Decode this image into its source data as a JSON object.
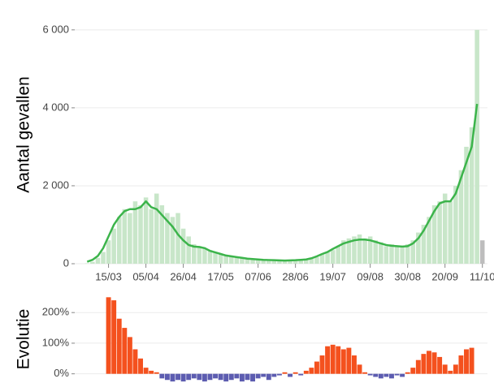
{
  "chart_data": [
    {
      "type": "bar-line",
      "y_label": "Aantal gevallen",
      "x": [
        "03/03",
        "06/03",
        "09/03",
        "12/03",
        "15/03",
        "18/03",
        "21/03",
        "24/03",
        "27/03",
        "30/03",
        "02/04",
        "05/04",
        "08/04",
        "11/04",
        "14/04",
        "17/04",
        "20/04",
        "23/04",
        "26/04",
        "29/04",
        "02/05",
        "05/05",
        "08/05",
        "11/05",
        "14/05",
        "17/05",
        "20/05",
        "23/05",
        "26/05",
        "29/05",
        "01/06",
        "04/06",
        "07/06",
        "10/06",
        "13/06",
        "16/06",
        "19/06",
        "22/06",
        "25/06",
        "28/06",
        "01/07",
        "04/07",
        "07/07",
        "10/07",
        "13/07",
        "16/07",
        "19/07",
        "22/07",
        "25/07",
        "28/07",
        "31/07",
        "03/08",
        "06/08",
        "09/08",
        "12/08",
        "15/08",
        "18/08",
        "21/08",
        "24/08",
        "27/08",
        "30/08",
        "02/09",
        "05/09",
        "08/09",
        "11/09",
        "14/09",
        "17/09",
        "20/09",
        "23/09",
        "26/09",
        "29/09",
        "02/10",
        "05/10",
        "08/10",
        "11/10"
      ],
      "xticks": [
        "15/03",
        "05/04",
        "26/04",
        "17/05",
        "07/06",
        "28/06",
        "19/07",
        "09/08",
        "30/08",
        "20/09",
        "11/10"
      ],
      "series": [
        {
          "kind": "bar",
          "color": "#c8e6c9",
          "values": [
            10,
            50,
            150,
            300,
            600,
            900,
            1200,
            1400,
            1300,
            1600,
            1500,
            1700,
            1400,
            1800,
            1500,
            1300,
            1200,
            1300,
            900,
            700,
            500,
            450,
            400,
            350,
            300,
            250,
            200,
            200,
            150,
            150,
            120,
            120,
            100,
            100,
            90,
            90,
            80,
            80,
            90,
            90,
            100,
            100,
            130,
            170,
            250,
            300,
            350,
            450,
            600,
            650,
            700,
            750,
            650,
            700,
            600,
            550,
            450,
            500,
            450,
            450,
            500,
            600,
            800,
            1000,
            1200,
            1500,
            1600,
            1800,
            1600,
            2000,
            2400,
            3000,
            3500,
            6000,
            600
          ]
        },
        {
          "kind": "line",
          "color": "#3cb44b",
          "values": [
            50,
            100,
            200,
            400,
            700,
            1000,
            1200,
            1350,
            1400,
            1400,
            1450,
            1600,
            1450,
            1400,
            1250,
            1100,
            950,
            750,
            600,
            480,
            440,
            430,
            400,
            330,
            290,
            250,
            210,
            190,
            170,
            150,
            130,
            120,
            110,
            100,
            95,
            90,
            85,
            80,
            85,
            90,
            100,
            110,
            140,
            190,
            250,
            300,
            380,
            450,
            520,
            560,
            600,
            620,
            620,
            600,
            560,
            520,
            480,
            460,
            450,
            440,
            450,
            520,
            650,
            850,
            1100,
            1350,
            1550,
            1600,
            1600,
            1800,
            2200,
            2600,
            3000,
            4100,
            null
          ]
        }
      ],
      "ylim": [
        0,
        6600
      ],
      "yticks": [
        {
          "value": 0,
          "label": "0"
        },
        {
          "value": 2000,
          "label": "2 000"
        },
        {
          "value": 4000,
          "label": "4 000"
        },
        {
          "value": 6000,
          "label": "6 000"
        }
      ],
      "grid": true
    },
    {
      "type": "diverging-bar",
      "y_label": "Evolutie",
      "positive_color": "#f4511e",
      "negative_color": "#5c5cb0",
      "values": [
        null,
        null,
        null,
        null,
        250,
        240,
        180,
        150,
        120,
        80,
        50,
        20,
        10,
        5,
        -15,
        -20,
        -25,
        -20,
        -25,
        -20,
        -15,
        -20,
        -25,
        -20,
        -15,
        -20,
        -25,
        -20,
        -15,
        -25,
        -20,
        -25,
        -15,
        -10,
        -20,
        -10,
        -5,
        5,
        -10,
        5,
        -5,
        10,
        20,
        40,
        60,
        90,
        95,
        90,
        80,
        85,
        60,
        30,
        5,
        -5,
        -10,
        -15,
        -10,
        -15,
        -5,
        -10,
        5,
        20,
        45,
        65,
        75,
        70,
        55,
        30,
        10,
        30,
        60,
        80,
        85,
        null,
        null
      ],
      "ylim": [
        -30,
        280
      ],
      "yticks": [
        {
          "value": 0,
          "label": "0%"
        },
        {
          "value": 100,
          "label": "100%"
        },
        {
          "value": 200,
          "label": "200%"
        }
      ],
      "grid": true
    }
  ]
}
